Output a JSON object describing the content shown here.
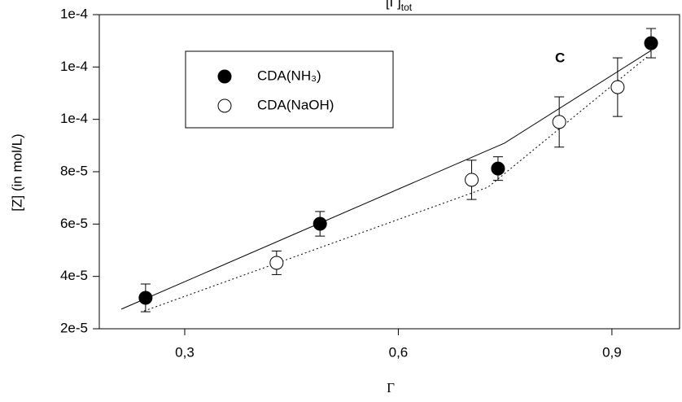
{
  "chart_data": {
    "type": "scatter",
    "title": "[Γ]",
    "title_subscript": "tot",
    "x_label": "Γ",
    "y_label": "[Z] (in mol/L)",
    "annotation": "C",
    "xlim": [
      0.18,
      0.995
    ],
    "ylim": [
      2e-05,
      0.00014
    ],
    "xticks": [
      {
        "value": 0.3,
        "label": "0,3"
      },
      {
        "value": 0.6,
        "label": "0,6"
      },
      {
        "value": 0.9,
        "label": "0,9"
      }
    ],
    "yticks": [
      {
        "value": 2e-05,
        "label": "2e-5"
      },
      {
        "value": 4e-05,
        "label": "4e-5"
      },
      {
        "value": 6e-05,
        "label": "6e-5"
      },
      {
        "value": 8e-05,
        "label": "8e-5"
      },
      {
        "value": 0.0001,
        "label": "1e-4"
      },
      {
        "value": 0.00012,
        "label": "1e-4"
      },
      {
        "value": 0.00014,
        "label": "1e-4"
      }
    ],
    "legend": "upper left",
    "series": [
      {
        "name": "CDA(NH₃)",
        "marker": "filled",
        "color": "#000000",
        "x": [
          0.245,
          0.49,
          0.74,
          0.955
        ],
        "values": [
          3.18e-05,
          6.01e-05,
          8.12e-05,
          0.0001291
        ],
        "errors": [
          5.3e-06,
          4.7e-06,
          4.5e-06,
          5.6e-06
        ]
      },
      {
        "name": "CDA(NaOH)",
        "marker": "open",
        "color": "#000000",
        "x": [
          0.429,
          0.703,
          0.826,
          0.908
        ],
        "values": [
          4.52e-05,
          7.69e-05,
          9.9e-05,
          0.0001123
        ],
        "errors": [
          4.5e-06,
          7.5e-06,
          9.6e-06,
          1.12e-05
        ]
      }
    ],
    "fits": [
      {
        "style": "solid",
        "x": [
          0.211,
          0.749,
          0.955
        ],
        "values": [
          2.75e-05,
          9.09e-05,
          0.0001263
        ]
      },
      {
        "style": "dotted",
        "x": [
          0.243,
          0.726,
          0.949
        ],
        "values": [
          2.68e-05,
          7.41e-05,
          0.0001238
        ]
      }
    ]
  }
}
